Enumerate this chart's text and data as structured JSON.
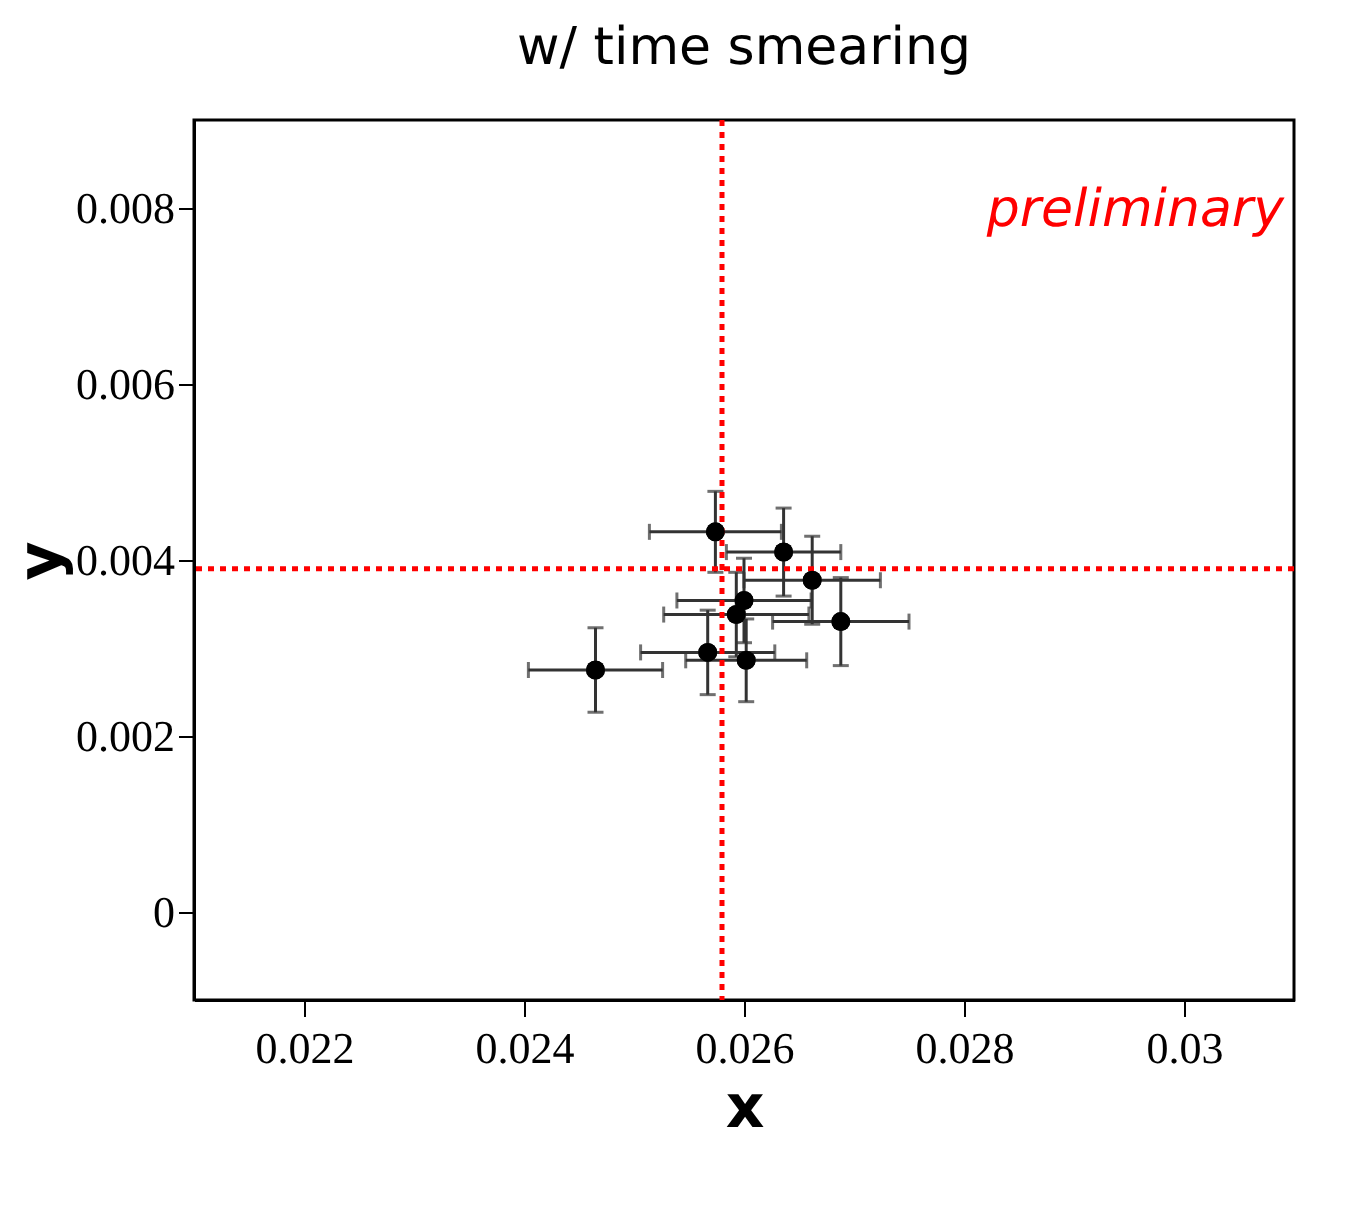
{
  "chart_data": {
    "type": "scatter",
    "title": "w/ time smearing",
    "xlabel": "x",
    "ylabel": "y",
    "x": [
      0.02465,
      0.02574,
      0.02636,
      0.02662,
      0.02688,
      0.026,
      0.02593,
      0.02567,
      0.02602
    ],
    "values": [
      0.00275,
      0.00432,
      0.00409,
      0.00377,
      0.0033,
      0.00354,
      0.00338,
      0.00295,
      0.00286
    ],
    "errors": [
      0.00048,
      0.00046,
      0.0005,
      0.0005,
      0.0005,
      0.00048,
      0.00048,
      0.00048,
      0.00047
    ],
    "xerrors": [
      0.00061,
      0.0006,
      0.00052,
      0.00062,
      0.00062,
      0.00061,
      0.00066,
      0.00061,
      0.00055
    ],
    "color": "#000000",
    "marker": "circle",
    "xlim": [
      0.021,
      0.031
    ],
    "xticks": [
      0.022,
      0.024,
      0.026,
      0.028,
      0.03
    ],
    "ylim": [
      -0.001,
      0.009
    ],
    "yticks": [
      0,
      0.002,
      0.004,
      0.006,
      0.008
    ],
    "ref_lines": [
      {
        "axis": "x",
        "value": 0.0258,
        "color": "#ff0000",
        "line_style": "dotted"
      },
      {
        "axis": "y",
        "value": 0.0039,
        "color": "#ff0000",
        "line_style": "dotted"
      }
    ],
    "annotations": [
      "preliminary"
    ],
    "grid": false
  }
}
